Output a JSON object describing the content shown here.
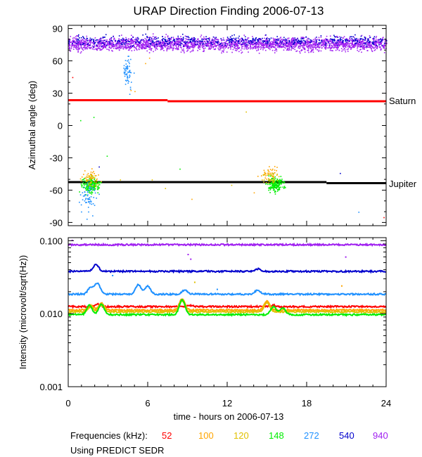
{
  "chart_data": [
    {
      "type": "scatter",
      "title": "URAP Direction Finding  2006-07-13",
      "ylabel": "Azimuthal angle (deg)",
      "xlim": [
        0,
        24
      ],
      "ylim": [
        -93,
        93
      ],
      "yticks": [
        "90",
        "60",
        "30",
        "0",
        "-30",
        "-60",
        "-90"
      ],
      "ytick_values": [
        90,
        60,
        30,
        0,
        -30,
        -60,
        -90
      ],
      "reference_lines": [
        {
          "name": "Saturn",
          "color": "#ff0000",
          "segments": [
            [
              0,
              7.5,
              23.5
            ],
            [
              7.5,
              24,
              22.5
            ]
          ]
        },
        {
          "name": "Jupiter",
          "color": "#000000",
          "segments": [
            [
              0,
              19.5,
              -52.5
            ],
            [
              19.5,
              24,
              -53.5
            ]
          ]
        }
      ],
      "series": [
        {
          "name": "940 kHz",
          "color": "#a020f0",
          "band": [
            64,
            84
          ],
          "note": "dense band 0-24 h around +75 deg"
        },
        {
          "name": "540 kHz",
          "color": "#0000cd",
          "band": [
            72,
            86
          ],
          "note": "mixed with 940 kHz band"
        },
        {
          "name": "148 kHz",
          "color": "#00ee00",
          "clusters": [
            [
              1.7,
              -55
            ],
            [
              15.6,
              -54
            ]
          ]
        },
        {
          "name": "120 kHz",
          "color": "#e0c000",
          "clusters": [
            [
              1.7,
              -50
            ],
            [
              15.3,
              -47
            ]
          ]
        },
        {
          "name": "100 kHz",
          "color": "#ffa500",
          "clusters": [
            [
              1.6,
              -48
            ],
            [
              15.2,
              -45
            ]
          ]
        },
        {
          "name": "272 kHz",
          "color": "#1e90ff",
          "clusters": [
            [
              1.5,
              -65
            ],
            [
              4.5,
              50
            ]
          ]
        },
        {
          "name": "52 kHz",
          "color": "#ff0000",
          "clusters": []
        }
      ]
    },
    {
      "type": "line",
      "ylabel": "Intensity (microvolt/sqrt(Hz))",
      "xlabel": "time - hours on 2006-07-13",
      "xlim": [
        0,
        24
      ],
      "xticks": [
        "0",
        "6",
        "12",
        "18",
        "24"
      ],
      "xtick_values": [
        0,
        6,
        12,
        18,
        24
      ],
      "yscale": "log",
      "ylim": [
        0.001,
        0.11
      ],
      "yticks": [
        "0.100",
        "0.010",
        "0.001"
      ],
      "ytick_values": [
        0.1,
        0.01,
        0.001
      ],
      "series": [
        {
          "name": "940",
          "color": "#a020f0",
          "baseline": 0.088,
          "peaks": []
        },
        {
          "name": "540",
          "color": "#0000cd",
          "baseline": 0.038,
          "peaks": [
            [
              2.1,
              0.047
            ],
            [
              14.3,
              0.041
            ]
          ]
        },
        {
          "name": "272",
          "color": "#1e90ff",
          "baseline": 0.0185,
          "peaks": [
            [
              1.7,
              0.023
            ],
            [
              2.2,
              0.026
            ],
            [
              5.3,
              0.025
            ],
            [
              6.0,
              0.024
            ],
            [
              8.8,
              0.021
            ],
            [
              14.3,
              0.021
            ]
          ]
        },
        {
          "name": "52",
          "color": "#ff0000",
          "baseline": 0.0125,
          "peaks": [
            [
              2.2,
              0.0135
            ],
            [
              9.2,
              0.013
            ],
            [
              15.5,
              0.013
            ]
          ]
        },
        {
          "name": "100",
          "color": "#ffa500",
          "baseline": 0.0112,
          "peaks": [
            [
              1.7,
              0.013
            ],
            [
              2.5,
              0.014
            ],
            [
              8.6,
              0.016
            ],
            [
              15.0,
              0.015
            ]
          ]
        },
        {
          "name": "120",
          "color": "#e0c000",
          "baseline": 0.0106,
          "peaks": [
            [
              1.7,
              0.0125
            ],
            [
              2.5,
              0.013
            ],
            [
              8.6,
              0.015
            ],
            [
              15.0,
              0.014
            ]
          ]
        },
        {
          "name": "148",
          "color": "#00ee00",
          "baseline": 0.0097,
          "peaks": [
            [
              1.6,
              0.013
            ],
            [
              2.5,
              0.0135
            ],
            [
              8.6,
              0.0155
            ],
            [
              15.5,
              0.0125
            ],
            [
              16.2,
              0.012
            ]
          ]
        }
      ]
    }
  ],
  "legend": {
    "label": "Frequencies (kHz):",
    "items": [
      {
        "value": "52",
        "color": "#ff0000"
      },
      {
        "value": "100",
        "color": "#ffa500"
      },
      {
        "value": "120",
        "color": "#e0c000"
      },
      {
        "value": "148",
        "color": "#00ee00"
      },
      {
        "value": "272",
        "color": "#1e90ff"
      },
      {
        "value": "540",
        "color": "#0000cd"
      },
      {
        "value": "940",
        "color": "#a020f0"
      }
    ]
  },
  "footnote": "Using PREDICT SEDR"
}
